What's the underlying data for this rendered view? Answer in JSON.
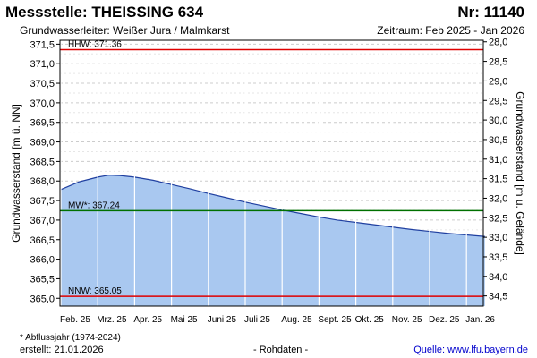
{
  "header": {
    "title": "Messstelle: THEISSING 634",
    "number": "Nr: 11140",
    "aquifer": "Grundwasserleiter:   Weißer Jura / Malmkarst",
    "period": "Zeitraum: Feb 2025 - Jan 2026"
  },
  "footer": {
    "footnote": "* Abflussjahr (1974-2024)",
    "created": "erstellt:  21.01.2026",
    "raw": "- Rohdaten -",
    "source": "Quelle: www.lfu.bayern.de"
  },
  "colors": {
    "fill": "#a9c8f0",
    "line": "#1f3fa0",
    "hhw": "#e00000",
    "nnw": "#e00000",
    "mw": "#007000",
    "grid": "#cccccc",
    "vgrid": "#ffffff"
  },
  "chart_data": {
    "type": "area",
    "ylabel": "Grundwasserstand [m ü. NN]",
    "ylabel_right": "Grundwasserstand [m u. Gelände]",
    "ylim": [
      364.8,
      371.6
    ],
    "ylim_right": [
      34.76,
      27.96
    ],
    "yticks": [
      "365,0",
      "365,5",
      "366,0",
      "366,5",
      "367,0",
      "367,5",
      "368,0",
      "368,5",
      "369,0",
      "369,5",
      "370,0",
      "370,5",
      "371,0",
      "371,5"
    ],
    "yticks_right": [
      "28,0",
      "28,5",
      "29,0",
      "29,5",
      "30,0",
      "30,5",
      "31,0",
      "31,5",
      "32,0",
      "32,5",
      "33,0",
      "33,5",
      "34,0",
      "34,5"
    ],
    "month_labels": [
      "Feb. 25",
      "Mrz. 25",
      "Apr. 25",
      "Mai 25",
      "Juni 25",
      "Juli 25",
      "Aug. 25",
      "Sept. 25",
      "Okt. 25",
      "Nov. 25",
      "Dez. 25",
      "Jan. 26"
    ],
    "x": [
      0,
      0.5,
      1,
      1.3,
      1.6,
      2,
      2.5,
      3,
      3.5,
      4,
      4.5,
      5,
      5.5,
      6,
      6.5,
      7,
      7.5,
      8,
      8.5,
      9,
      9.5,
      10,
      10.5,
      11,
      11.5
    ],
    "values": [
      367.78,
      367.98,
      368.1,
      368.15,
      368.14,
      368.1,
      368.02,
      367.91,
      367.8,
      367.68,
      367.57,
      367.46,
      367.36,
      367.26,
      367.17,
      367.08,
      367.0,
      366.94,
      366.88,
      366.82,
      366.76,
      366.71,
      366.66,
      366.62,
      366.58
    ],
    "reference_lines": [
      {
        "label": "HHW: 371.36",
        "value": 371.36,
        "key": "hhw"
      },
      {
        "label": "MW*: 367.24",
        "value": 367.24,
        "key": "mw"
      },
      {
        "label": "NNW: 365.05",
        "value": 365.05,
        "key": "nnw"
      }
    ]
  }
}
